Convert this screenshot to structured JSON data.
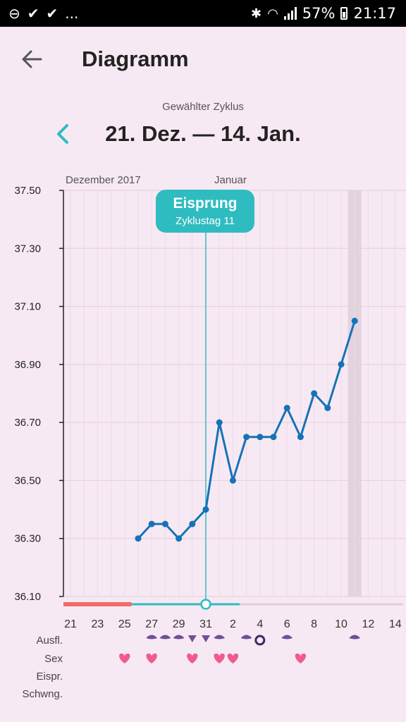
{
  "status_bar": {
    "left_icons": [
      "minus-circle-icon",
      "check-icon",
      "check-icon"
    ],
    "more": "...",
    "battery": "57%",
    "time": "21:17"
  },
  "header": {
    "title": "Diagramm",
    "back_icon": "arrow-left-icon"
  },
  "cycle": {
    "caption": "Gewählter Zyklus",
    "range": "21. Dez. — 14. Jan.",
    "prev_icon": "chevron-left-icon"
  },
  "months": {
    "first": "Dezember 2017",
    "second": "Januar"
  },
  "ovulation": {
    "title": "Eisprung",
    "subtitle": "Zyklustag 11"
  },
  "colors": {
    "line": "#1673b6",
    "ovulation_accent": "#2fbcc0",
    "period": "#f06a6a",
    "heart": "#ef5c8c",
    "discharge": "#6e4f9a",
    "background": "#f7e9f3"
  },
  "row_labels": {
    "discharge": "Ausfl.",
    "sex": "Sex",
    "ovulation_test": "Eispr.",
    "pregnancy_test": "Schwng."
  },
  "chart_data": {
    "type": "line",
    "title": "",
    "ylabel": "",
    "xlabel": "",
    "x_tick_labels": [
      "21",
      "23",
      "25",
      "27",
      "29",
      "31",
      "2",
      "4",
      "6",
      "8",
      "10",
      "12",
      "14"
    ],
    "y_tick_labels": [
      "37.50",
      "37.30",
      "37.10",
      "36.90",
      "36.70",
      "36.50",
      "36.30",
      "36.10"
    ],
    "ylim": [
      36.1,
      37.5
    ],
    "grid": true,
    "days": [
      "2017-12-21",
      "2017-12-22",
      "2017-12-23",
      "2017-12-24",
      "2017-12-25",
      "2017-12-26",
      "2017-12-27",
      "2017-12-28",
      "2017-12-29",
      "2017-12-30",
      "2017-12-31",
      "2018-01-01",
      "2018-01-02",
      "2018-01-03",
      "2018-01-04",
      "2018-01-05",
      "2018-01-06",
      "2018-01-07",
      "2018-01-08",
      "2018-01-09",
      "2018-01-10",
      "2018-01-11",
      "2018-01-12",
      "2018-01-13",
      "2018-01-14"
    ],
    "temperature": [
      null,
      null,
      null,
      null,
      null,
      36.3,
      36.35,
      36.35,
      36.3,
      36.35,
      36.4,
      36.7,
      36.5,
      36.65,
      36.65,
      36.65,
      36.75,
      36.65,
      36.8,
      36.75,
      36.9,
      37.05,
      null,
      null,
      null
    ],
    "ovulation_day": "2017-12-31",
    "today": "2018-01-11",
    "period_days": [
      "2017-12-21",
      "2017-12-22",
      "2017-12-23",
      "2017-12-24",
      "2017-12-25"
    ],
    "fertile_window": [
      "2017-12-26",
      "2018-01-02"
    ],
    "sex_days": [
      "2017-12-25",
      "2017-12-27",
      "2017-12-30",
      "2018-01-01",
      "2018-01-02",
      "2018-01-07"
    ],
    "discharge_days": [
      "2017-12-27",
      "2017-12-28",
      "2017-12-29",
      "2017-12-30",
      "2017-12-31",
      "2018-01-01",
      "2018-01-03",
      "2018-01-06",
      "2018-01-11"
    ],
    "discharge_v_days": [
      "2017-12-30",
      "2017-12-31"
    ],
    "discharge_ring_day": "2018-01-04"
  }
}
